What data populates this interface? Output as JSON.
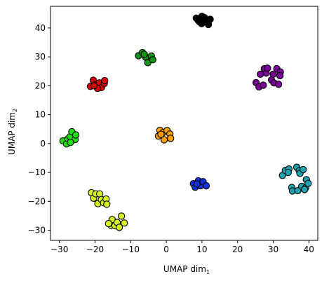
{
  "chart_data": {
    "type": "scatter",
    "title": "",
    "xlabel": {
      "base": "UMAP dim",
      "subscript": "1"
    },
    "ylabel": {
      "base": "UMAP dim",
      "subscript": "2"
    },
    "xlim": [
      -32.5,
      42.5
    ],
    "ylim": [
      -33.5,
      47.5
    ],
    "xticks": [
      -30,
      -20,
      -10,
      0,
      10,
      20,
      30,
      40
    ],
    "yticks": [
      -30,
      -20,
      -10,
      0,
      10,
      20,
      30,
      40
    ],
    "xtick_labels": [
      "−30",
      "−20",
      "−10",
      "0",
      "10",
      "20",
      "30",
      "40"
    ],
    "ytick_labels": [
      "−30",
      "−20",
      "−10",
      "0",
      "10",
      "20",
      "30",
      "40"
    ],
    "grid": false,
    "legend": false,
    "marker_edge_color": "#000000",
    "series": [
      {
        "color": "#000000",
        "points": [
          [
            8.4,
            43.4
          ],
          [
            9.3,
            42.1
          ],
          [
            10.0,
            44.0
          ],
          [
            11.0,
            42.9
          ],
          [
            11.8,
            41.2
          ],
          [
            12.3,
            43.0
          ],
          [
            9.9,
            41.5
          ],
          [
            10.7,
            43.6
          ],
          [
            8.9,
            42.7
          ]
        ]
      },
      {
        "color": "#7b0099",
        "points": [
          [
            25.2,
            21.1
          ],
          [
            26.0,
            19.6
          ],
          [
            27.5,
            25.9
          ],
          [
            28.0,
            24.4
          ],
          [
            27.2,
            20.2
          ],
          [
            29.5,
            22.0
          ],
          [
            30.2,
            21.0
          ],
          [
            31.0,
            25.9
          ],
          [
            32.0,
            24.8
          ],
          [
            31.9,
            23.5
          ],
          [
            28.4,
            26.1
          ],
          [
            31.5,
            20.5
          ],
          [
            26.4,
            24.0
          ],
          [
            30.0,
            24.0
          ]
        ]
      },
      {
        "color": "#139513",
        "points": [
          [
            -7.8,
            30.4
          ],
          [
            -6.7,
            31.5
          ],
          [
            -5.8,
            29.9
          ],
          [
            -5.2,
            28.0
          ],
          [
            -4.2,
            30.3
          ],
          [
            -3.8,
            29.0
          ],
          [
            -6.2,
            30.9
          ]
        ]
      },
      {
        "color": "#dd0000",
        "points": [
          [
            -21.3,
            19.8
          ],
          [
            -20.5,
            21.9
          ],
          [
            -19.8,
            20.4
          ],
          [
            -18.8,
            21.0
          ],
          [
            -18.2,
            19.4
          ],
          [
            -17.4,
            20.8
          ],
          [
            -17.3,
            21.8
          ],
          [
            -19.3,
            19.1
          ],
          [
            -20.3,
            20.0
          ]
        ]
      },
      {
        "color": "#22dd11",
        "points": [
          [
            -29.0,
            0.9
          ],
          [
            -28.0,
            -0.1
          ],
          [
            -27.6,
            1.6
          ],
          [
            -27.0,
            2.4
          ],
          [
            -26.5,
            4.1
          ],
          [
            -25.6,
            1.4
          ],
          [
            -25.4,
            3.0
          ],
          [
            -26.9,
            0.4
          ]
        ]
      },
      {
        "color": "#ffa000",
        "points": [
          [
            -2.2,
            2.6
          ],
          [
            -1.8,
            4.6
          ],
          [
            -0.9,
            3.8
          ],
          [
            -0.6,
            1.3
          ],
          [
            0.2,
            4.5
          ],
          [
            1.0,
            3.3
          ],
          [
            1.2,
            1.8
          ],
          [
            -1.5,
            3.2
          ]
        ]
      },
      {
        "color": "#1133dd",
        "points": [
          [
            7.6,
            -13.9
          ],
          [
            8.1,
            -15.1
          ],
          [
            9.0,
            -12.9
          ],
          [
            9.6,
            -14.6
          ],
          [
            10.3,
            -13.2
          ],
          [
            11.2,
            -14.6
          ],
          [
            8.6,
            -14.0
          ]
        ]
      },
      {
        "color": "#1aa3b3",
        "points": [
          [
            32.6,
            -11.0
          ],
          [
            33.4,
            -9.3
          ],
          [
            34.4,
            -8.8
          ],
          [
            34.2,
            -10.0
          ],
          [
            35.2,
            -15.2
          ],
          [
            35.4,
            -16.4
          ],
          [
            36.6,
            -8.2
          ],
          [
            36.9,
            -16.3
          ],
          [
            37.3,
            -9.4
          ],
          [
            37.5,
            -10.3
          ],
          [
            38.4,
            -9.0
          ],
          [
            38.0,
            -14.8
          ],
          [
            39.1,
            -15.3
          ],
          [
            39.3,
            -12.5
          ],
          [
            39.8,
            -13.8
          ],
          [
            38.8,
            -15.9
          ]
        ]
      },
      {
        "color": "#d9f226",
        "points": [
          [
            -21.0,
            -17.0
          ],
          [
            -20.4,
            -18.9
          ],
          [
            -19.8,
            -17.4
          ],
          [
            -18.7,
            -17.4
          ],
          [
            -19.2,
            -20.8
          ],
          [
            -18.2,
            -19.4
          ],
          [
            -17.6,
            -20.5
          ],
          [
            -16.9,
            -19.2
          ],
          [
            -16.7,
            -21.0
          ],
          [
            -15.5,
            -28.3
          ],
          [
            -15.2,
            -26.3
          ],
          [
            -14.4,
            -28.4
          ],
          [
            -13.8,
            -27.3
          ],
          [
            -13.2,
            -29.0
          ],
          [
            -12.6,
            -25.1
          ],
          [
            -11.8,
            -27.5
          ],
          [
            -16.2,
            -27.7
          ]
        ]
      }
    ]
  }
}
